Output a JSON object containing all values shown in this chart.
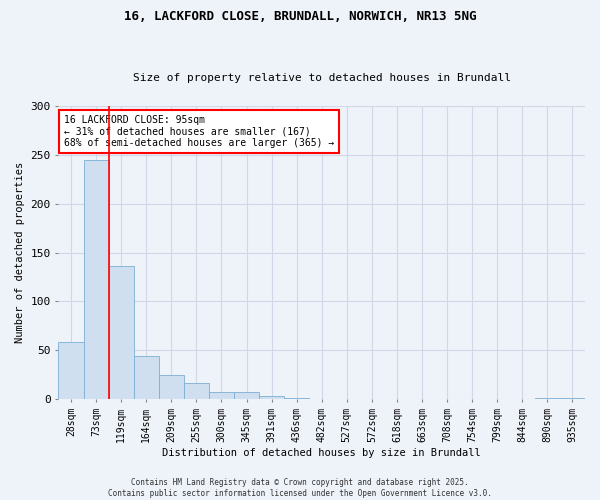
{
  "title1": "16, LACKFORD CLOSE, BRUNDALL, NORWICH, NR13 5NG",
  "title2": "Size of property relative to detached houses in Brundall",
  "xlabel": "Distribution of detached houses by size in Brundall",
  "ylabel": "Number of detached properties",
  "bar_color": "#cfdff0",
  "bar_edge_color": "#7bafd4",
  "vline_color": "red",
  "vline_x": 1.5,
  "annotation_text": "16 LACKFORD CLOSE: 95sqm\n← 31% of detached houses are smaller (167)\n68% of semi-detached houses are larger (365) →",
  "annotation_box_color": "white",
  "annotation_edge_color": "red",
  "categories": [
    "28sqm",
    "73sqm",
    "119sqm",
    "164sqm",
    "209sqm",
    "255sqm",
    "300sqm",
    "345sqm",
    "391sqm",
    "436sqm",
    "482sqm",
    "527sqm",
    "572sqm",
    "618sqm",
    "663sqm",
    "708sqm",
    "754sqm",
    "799sqm",
    "844sqm",
    "890sqm",
    "935sqm"
  ],
  "values": [
    58,
    245,
    136,
    44,
    25,
    16,
    7,
    7,
    3,
    1,
    0,
    0,
    0,
    0,
    0,
    0,
    0,
    0,
    0,
    1,
    1
  ],
  "ylim": [
    0,
    300
  ],
  "yticks": [
    0,
    50,
    100,
    150,
    200,
    250,
    300
  ],
  "footnote": "Contains HM Land Registry data © Crown copyright and database right 2025.\nContains public sector information licensed under the Open Government Licence v3.0.",
  "bg_color": "#eef2f9",
  "grid_color": "#d0d8e8"
}
